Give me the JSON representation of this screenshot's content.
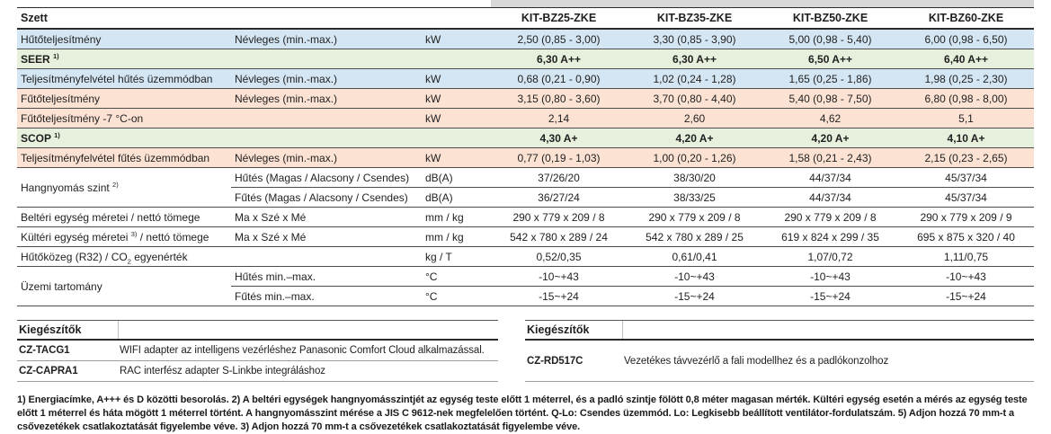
{
  "table": {
    "corner_label": "Szett",
    "models": [
      "KIT-BZ25-ZKE",
      "KIT-BZ35-ZKE",
      "KIT-BZ50-ZKE",
      "KIT-BZ60-ZKE"
    ],
    "rows": [
      {
        "label": "Hűtőteljesítmény",
        "sub": "Névleges (min.-max.)",
        "unit": "kW",
        "bg": "blue",
        "values": [
          "2,50 (0,85 - 3,00)",
          "3,30 (0,85 - 3,90)",
          "5,00 (0,98 - 5,40)",
          "6,00 (0,98 - 6,50)"
        ]
      },
      {
        "label": "SEER ^{1)}",
        "sub": "",
        "unit": "",
        "bg": "green",
        "bold": true,
        "values": [
          "6,30 A++",
          "6,30 A++",
          "6,50 A++",
          "6,40 A++"
        ]
      },
      {
        "label": "Teljesítményfelvétel hűtés üzemmódban",
        "sub": "Névleges (min.-max.)",
        "unit": "kW",
        "bg": "blue",
        "values": [
          "0,68 (0,21 - 0,90)",
          "1,02 (0,24 - 1,28)",
          "1,65 (0,25 - 1,86)",
          "1,98 (0,25 - 2,30)"
        ]
      },
      {
        "label": "Fűtőteljesítmény",
        "sub": "Névleges (min.-max.)",
        "unit": "kW",
        "bg": "peach",
        "values": [
          "3,15 (0,80 - 3,60)",
          "3,70 (0,80 - 4,40)",
          "5,40 (0,98 - 7,50)",
          "6,80 (0,98 - 8,00)"
        ]
      },
      {
        "label": "Fűtőteljesítmény -7 °C-on",
        "sub": "",
        "unit": "kW",
        "bg": "peach",
        "values": [
          "2,14",
          "2,60",
          "4,62",
          "5,1"
        ]
      },
      {
        "label": "SCOP ^{1)}",
        "sub": "",
        "unit": "",
        "bg": "green",
        "bold": true,
        "values": [
          "4,30 A+",
          "4,20 A+",
          "4,20 A+",
          "4,10 A+"
        ]
      },
      {
        "label": "Teljesítményfelvétel fűtés üzemmódban",
        "sub": "Névleges (min.-max.)",
        "unit": "kW",
        "bg": "peach",
        "values": [
          "0,77 (0,19 - 1,03)",
          "1,00 (0,20 - 1,26)",
          "1,58 (0,21 - 2,43)",
          "2,15 (0,23 - 2,65)"
        ]
      },
      {
        "label": "Hangnyomás szint ^{2)}",
        "rowspan": 2,
        "light_bottom": true,
        "sub": "Hűtés (Magas / Alacsony / Csendes)",
        "unit": "dB(A)",
        "bg": "white",
        "values": [
          "37/26/20",
          "38/30/20",
          "44/37/34",
          "45/37/34"
        ]
      },
      {
        "cont": true,
        "sub": "Fűtés (Magas / Alacsony / Csendes)",
        "unit": "dB(A)",
        "bg": "white",
        "values": [
          "36/27/24",
          "38/33/25",
          "44/37/34",
          "45/37/34"
        ]
      },
      {
        "label": "Beltéri egység méretei / nettó tömege",
        "sub": "Ma x Szé x Mé",
        "unit": "mm / kg",
        "bg": "white",
        "values": [
          "290 x 779 x 209 / 8",
          "290 x 779 x 209 / 8",
          "290 x 779 x 209 / 8",
          "290 x 779 x 209 / 9"
        ]
      },
      {
        "label": "Kültéri egység méretei ^{3)} / nettó tömege",
        "sub": "Ma x Szé x Mé",
        "unit": "mm / kg",
        "bg": "white",
        "values": [
          "542 x 780 x 289 / 24",
          "542 x 780 x 289 / 25",
          "619 x 824 x 299 / 35",
          "695 x 875 x 320 / 40"
        ]
      },
      {
        "label": "Hűtőközeg (R32) / CO_{2} egyenérték",
        "sub": "",
        "unit": "kg / T",
        "bg": "white",
        "values": [
          "0,52/0,35",
          "0,61/0,41",
          "1,07/0,72",
          "1,11/0,75"
        ]
      },
      {
        "label": "Üzemi tartomány",
        "rowspan": 2,
        "light_bottom": true,
        "sub": "Hűtés min.–max.",
        "unit": "°C",
        "bg": "white",
        "values": [
          "-10~+43",
          "-10~+43",
          "-10~+43",
          "-10~+43"
        ]
      },
      {
        "cont": true,
        "last": true,
        "sub": "Fűtés min.–max.",
        "unit": "°C",
        "bg": "white",
        "values": [
          "-15~+24",
          "-15~+24",
          "-15~+24",
          "-15~+24"
        ]
      }
    ]
  },
  "accessories_left": {
    "title": "Kiegészítők",
    "items": [
      {
        "code": "CZ-TACG1",
        "desc": "WIFI adapter az intelligens vezérléshez Panasonic Comfort Cloud alkalmazással."
      },
      {
        "code": "CZ-CAPRA1",
        "desc": "RAC interfész adapter S-Linkbe integráláshoz"
      }
    ]
  },
  "accessories_right": {
    "title": "Kiegészítők",
    "items": [
      {
        "code": "CZ-RD517C",
        "desc": "Vezetékes távvezérlő a fali modellhez és a padlókonzolhoz"
      }
    ]
  },
  "footnote": "1) Energiacímke, A+++ és D közötti besorolás. 2) A beltéri egységek hangnyomásszintjét az egység teste előtt 1 méterrel, és a padló szintje fölött 0,8 méter magasan mérték. Kültéri egység esetén a mérés az egység teste előtt 1 méterrel és háta mögött 1 méterrel történt. A hangnyomásszint mérése a JIS C 9612-nek megfelelően történt. Q-Lo: Csendes üzemmód. Lo: Legkisebb beállított ventilátor-fordulatszám. 5) Adjon hozzá 70 mm-t a csővezetékek csatlakoztatását figyelembe véve. 3) Adjon hozzá 70 mm-t a csővezetékek csatlakoztatását figyelembe véve.",
  "colors": {
    "row_blue": "#d4e6f3",
    "row_green": "#e7f0dd",
    "row_peach": "#fbe2d3",
    "header_strip": "#d8d8d8",
    "border_dark": "#2b2b2b",
    "border_light": "#9e9e9e"
  }
}
